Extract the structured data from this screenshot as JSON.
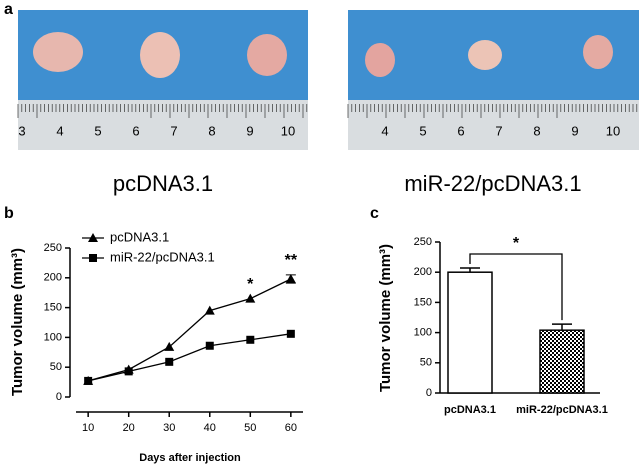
{
  "panel_labels": [
    "a",
    "b",
    "c"
  ],
  "photos": [
    {
      "label": "pcDNA3.1",
      "ruler_labels": [
        "3",
        "4",
        "5",
        "6",
        "7",
        "8",
        "9",
        "10"
      ]
    },
    {
      "label": "miR-22/pcDNA3.1",
      "ruler_labels": [
        "4",
        "5",
        "6",
        "7",
        "8",
        "9",
        "10"
      ]
    }
  ],
  "chart_data": [
    {
      "type": "line",
      "x_label": "Days after injection",
      "y_label": "Tumor volume (mm³)",
      "x": [
        10,
        20,
        30,
        40,
        50,
        60
      ],
      "series": [
        {
          "name": "pcDNA3.1",
          "color": "#000000",
          "marker": "triangle",
          "values": [
            27,
            46,
            84,
            145,
            165,
            198
          ],
          "errors": [
            null,
            null,
            null,
            null,
            null,
            7
          ]
        },
        {
          "name": "miR-22/pcDNA3.1",
          "color": "#000000",
          "marker": "square",
          "values": [
            27,
            43,
            59,
            86,
            96,
            106
          ]
        }
      ],
      "annotations": [
        {
          "text": "*",
          "x": 50
        },
        {
          "text": "**",
          "x": 60
        }
      ],
      "xlim": [
        7,
        63
      ],
      "xticks": [
        10,
        20,
        30,
        40,
        50,
        60
      ],
      "ylim": [
        0,
        250
      ],
      "yticks": [
        0,
        50,
        100,
        150,
        200,
        250
      ],
      "legend": "upper left"
    },
    {
      "type": "bar",
      "y_label": "Tumor volume (mm³)",
      "categories": [
        "pcDNA3.1",
        "miR-22/pcDNA3.1"
      ],
      "values": [
        200,
        104
      ],
      "errors": [
        7,
        10
      ],
      "fills": [
        "white",
        "checker"
      ],
      "annotations": [
        {
          "text": "*"
        }
      ],
      "ylim": [
        0,
        250
      ],
      "yticks": [
        0,
        50,
        100,
        150,
        200,
        250
      ]
    }
  ]
}
